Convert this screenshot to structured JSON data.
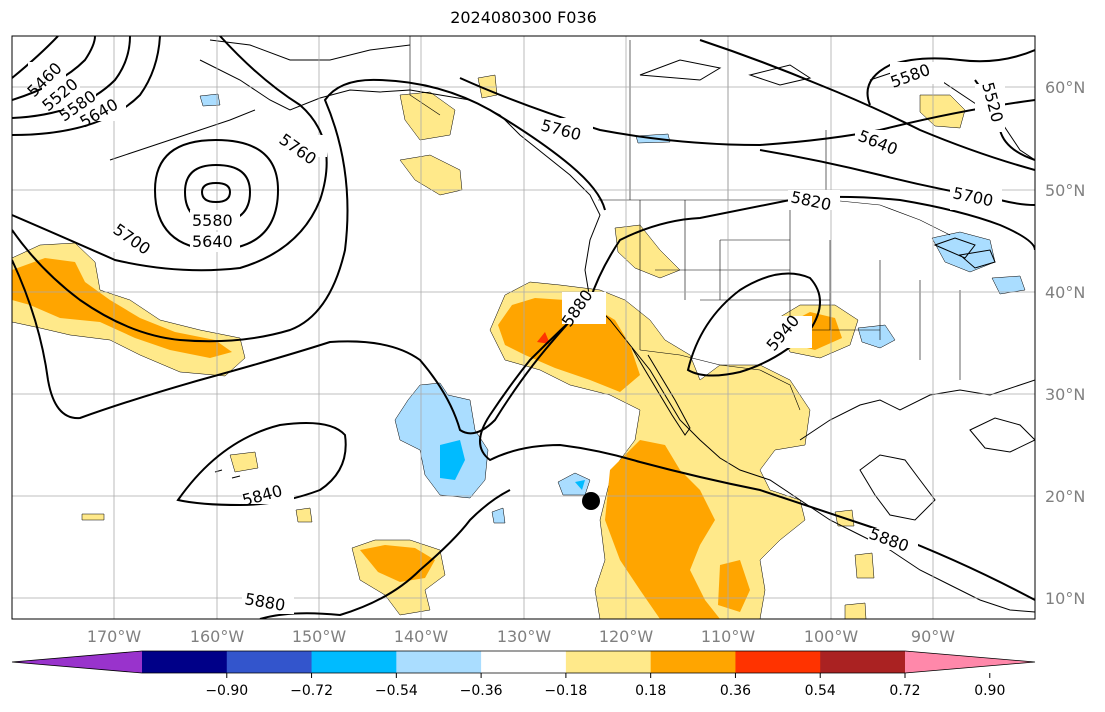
{
  "title": "2024080300 F036",
  "lat_labels": [
    "60°N",
    "50°N",
    "40°N",
    "30°N",
    "20°N",
    "10°N"
  ],
  "lon_labels": [
    "170°W",
    "160°W",
    "150°W",
    "140°W",
    "130°W",
    "120°W",
    "110°W",
    "100°W",
    "90°W"
  ],
  "contour_labels": [
    "5460",
    "5520",
    "5580",
    "5640",
    "5760",
    "5580",
    "5640",
    "5700",
    "5760",
    "5820",
    "5880",
    "5940",
    "5840",
    "5880",
    "5880",
    "5580",
    "5640",
    "5700",
    "5520"
  ],
  "colorbar": {
    "ticks": [
      "−0.90",
      "−0.72",
      "−0.54",
      "−0.36",
      "−0.18",
      "0.18",
      "0.36",
      "0.54",
      "0.72",
      "0.90"
    ],
    "colors": [
      "#9933cc",
      "#000088",
      "#3355cc",
      "#00bbff",
      "#aaddff",
      "#ffffff",
      "#ffe98a",
      "#ffa500",
      "#ff3300",
      "#aa2222",
      "#ff88aa"
    ]
  }
}
